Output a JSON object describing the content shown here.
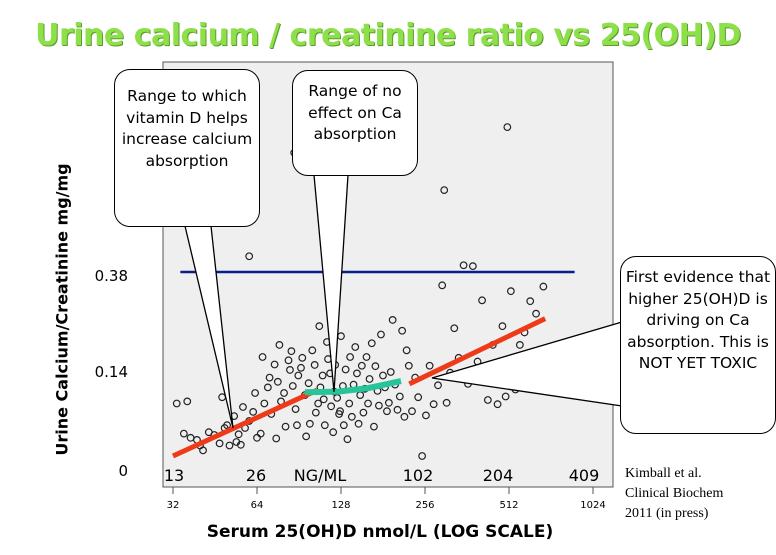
{
  "title": "Urine calcium  / creatinine ratio vs 25(OH)D",
  "chart_data": {
    "type": "scatter",
    "xlabel": "Serum 25(OH)D  nmol/L  (LOG SCALE)",
    "ylabel": "Urine Calcium/Creatinine mg/mg",
    "x_scale": "log2",
    "xlim": [
      28,
      1024
    ],
    "x_ticks": [
      "32",
      "64",
      "128",
      "256",
      "512",
      "1024"
    ],
    "x_ticks_ngml": [
      "13",
      "26",
      "NG/ML",
      "102",
      "204",
      "409"
    ],
    "y_ticks": [
      "0.38",
      "0.14",
      "0"
    ],
    "points": [
      [
        33,
        0.095
      ],
      [
        35,
        0.052
      ],
      [
        37,
        0.046
      ],
      [
        39,
        0.043
      ],
      [
        40,
        0.035
      ],
      [
        41,
        0.028
      ],
      [
        43,
        0.054
      ],
      [
        45,
        0.05
      ],
      [
        47,
        0.038
      ],
      [
        48,
        0.104
      ],
      [
        49,
        0.06
      ],
      [
        50,
        0.064
      ],
      [
        51,
        0.035
      ],
      [
        53,
        0.077
      ],
      [
        54,
        0.04
      ],
      [
        55,
        0.051
      ],
      [
        56,
        0.036
      ],
      [
        57,
        0.09
      ],
      [
        58,
        0.06
      ],
      [
        60,
        0.07
      ],
      [
        62,
        0.083
      ],
      [
        63,
        0.11
      ],
      [
        64,
        0.046
      ],
      [
        66,
        0.052
      ],
      [
        67,
        0.176
      ],
      [
        68,
        0.095
      ],
      [
        70,
        0.118
      ],
      [
        71,
        0.132
      ],
      [
        72,
        0.08
      ],
      [
        74,
        0.158
      ],
      [
        75,
        0.045
      ],
      [
        76,
        0.126
      ],
      [
        77,
        0.205
      ],
      [
        78,
        0.098
      ],
      [
        80,
        0.11
      ],
      [
        81,
        0.062
      ],
      [
        83,
        0.168
      ],
      [
        84,
        0.145
      ],
      [
        85,
        0.19
      ],
      [
        86,
        0.12
      ],
      [
        88,
        0.087
      ],
      [
        89,
        0.064
      ],
      [
        90,
        0.135
      ],
      [
        92,
        0.15
      ],
      [
        93,
        0.174
      ],
      [
        95,
        0.107
      ],
      [
        96,
        0.048
      ],
      [
        98,
        0.124
      ],
      [
        99,
        0.066
      ],
      [
        101,
        0.192
      ],
      [
        103,
        0.157
      ],
      [
        104,
        0.082
      ],
      [
        106,
        0.095
      ],
      [
        107,
        0.25
      ],
      [
        108,
        0.118
      ],
      [
        110,
        0.135
      ],
      [
        111,
        0.101
      ],
      [
        112,
        0.064
      ],
      [
        114,
        0.212
      ],
      [
        115,
        0.171
      ],
      [
        117,
        0.138
      ],
      [
        118,
        0.091
      ],
      [
        120,
        0.054
      ],
      [
        121,
        0.112
      ],
      [
        122,
        0.157
      ],
      [
        124,
        0.103
      ],
      [
        126,
        0.08
      ],
      [
        127,
        0.084
      ],
      [
        128,
        0.226
      ],
      [
        130,
        0.12
      ],
      [
        131,
        0.064
      ],
      [
        133,
        0.146
      ],
      [
        135,
        0.044
      ],
      [
        137,
        0.095
      ],
      [
        138,
        0.176
      ],
      [
        140,
        0.076
      ],
      [
        142,
        0.122
      ],
      [
        144,
        0.2
      ],
      [
        146,
        0.138
      ],
      [
        148,
        0.066
      ],
      [
        150,
        0.107
      ],
      [
        152,
        0.155
      ],
      [
        154,
        0.082
      ],
      [
        156,
        0.116
      ],
      [
        158,
        0.176
      ],
      [
        160,
        0.095
      ],
      [
        162,
        0.13
      ],
      [
        165,
        0.209
      ],
      [
        168,
        0.062
      ],
      [
        170,
        0.154
      ],
      [
        173,
        0.113
      ],
      [
        175,
        0.092
      ],
      [
        178,
        0.23
      ],
      [
        181,
        0.135
      ],
      [
        184,
        0.118
      ],
      [
        187,
        0.084
      ],
      [
        190,
        0.096
      ],
      [
        193,
        0.14
      ],
      [
        196,
        0.265
      ],
      [
        200,
        0.122
      ],
      [
        204,
        0.086
      ],
      [
        208,
        0.105
      ],
      [
        212,
        0.239
      ],
      [
        216,
        0.076
      ],
      [
        220,
        0.192
      ],
      [
        224,
        0.155
      ],
      [
        230,
        0.084
      ],
      [
        236,
        0.132
      ],
      [
        242,
        0.104
      ],
      [
        250,
        0.02
      ],
      [
        258,
        0.078
      ],
      [
        266,
        0.155
      ],
      [
        275,
        0.094
      ],
      [
        285,
        0.121
      ],
      [
        295,
        0.348
      ],
      [
        300,
        0.562
      ],
      [
        306,
        0.096
      ],
      [
        315,
        0.139
      ],
      [
        326,
        0.245
      ],
      [
        338,
        0.174
      ],
      [
        352,
        0.395
      ],
      [
        365,
        0.123
      ],
      [
        380,
        0.393
      ],
      [
        395,
        0.165
      ],
      [
        410,
        0.312
      ],
      [
        430,
        0.1
      ],
      [
        448,
        0.205
      ],
      [
        466,
        0.094
      ],
      [
        485,
        0.25
      ],
      [
        498,
        0.105
      ],
      [
        505,
        0.702
      ],
      [
        520,
        0.334
      ],
      [
        540,
        0.115
      ],
      [
        560,
        0.205
      ],
      [
        582,
        0.235
      ],
      [
        610,
        0.31
      ],
      [
        640,
        0.28
      ],
      [
        680,
        0.345
      ],
      [
        87,
        0.645
      ],
      [
        60,
        0.415
      ],
      [
        36,
        0.098
      ]
    ],
    "lines": [
      {
        "name": "reference",
        "color": "#0a1f8f",
        "y": 0.38,
        "xrange": [
          34,
          880
        ]
      },
      {
        "name": "red-fit",
        "color": "#ee3a18",
        "segments": [
          [
            [
              32,
              0.02
            ],
            [
              105,
              0.114
            ]
          ],
          [
            [
              225,
              0.123
            ],
            [
              690,
              0.268
            ]
          ]
        ]
      },
      {
        "name": "green-fit",
        "color": "#27c49a",
        "segments": [
          [
            [
              95,
              0.111
            ],
            [
              125,
              0.112
            ],
            [
              160,
              0.117
            ],
            [
              210,
              0.127
            ]
          ]
        ]
      }
    ]
  },
  "callouts": {
    "left": "Range to which vitamin D helps increase calcium absorption",
    "middle": "Range of no effect on Ca absorption",
    "right": "First evidence that higher 25(OH)D is driving on Ca absorption. This is NOT YET TOXIC"
  },
  "citation": [
    "Kimball et al.",
    "Clinical Biochem",
    "2011 (in press)"
  ]
}
